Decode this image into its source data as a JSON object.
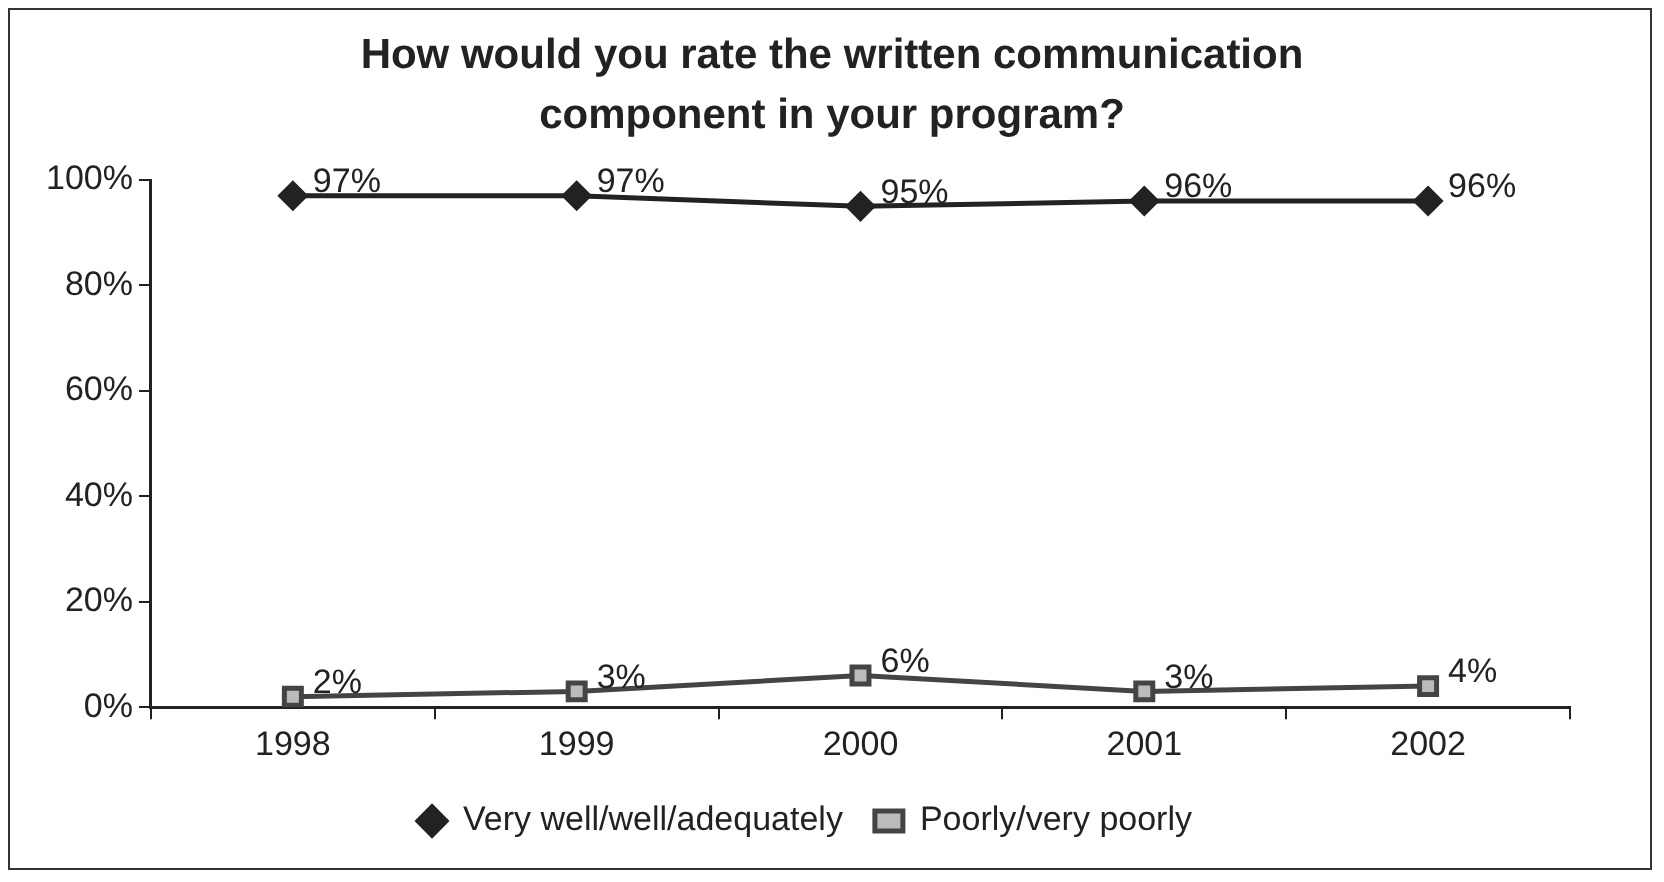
{
  "chart_data": {
    "type": "line",
    "title": "How would you rate the written communication component in your program?",
    "categories": [
      "1998",
      "1999",
      "2000",
      "2001",
      "2002"
    ],
    "series": [
      {
        "name": "Very well/well/adequately",
        "color": "#222222",
        "marker": "diamond",
        "values": [
          97,
          97,
          95,
          96,
          96
        ],
        "value_labels": [
          "97%",
          "97%",
          "95%",
          "96%",
          "96%"
        ]
      },
      {
        "name": "Poorly/very poorly",
        "color": "#444444",
        "marker": "square",
        "values": [
          2,
          3,
          6,
          3,
          4
        ],
        "value_labels": [
          "2%",
          "3%",
          "6%",
          "3%",
          "4%"
        ]
      }
    ],
    "ylim": [
      0,
      100
    ],
    "yticks": [
      {
        "value": 0,
        "label": "0%"
      },
      {
        "value": 20,
        "label": "20%"
      },
      {
        "value": 40,
        "label": "40%"
      },
      {
        "value": 60,
        "label": "60%"
      },
      {
        "value": 80,
        "label": "80%"
      },
      {
        "value": 100,
        "label": "100%"
      }
    ],
    "grid": false,
    "legend": "bottom",
    "line_style": "solid"
  }
}
